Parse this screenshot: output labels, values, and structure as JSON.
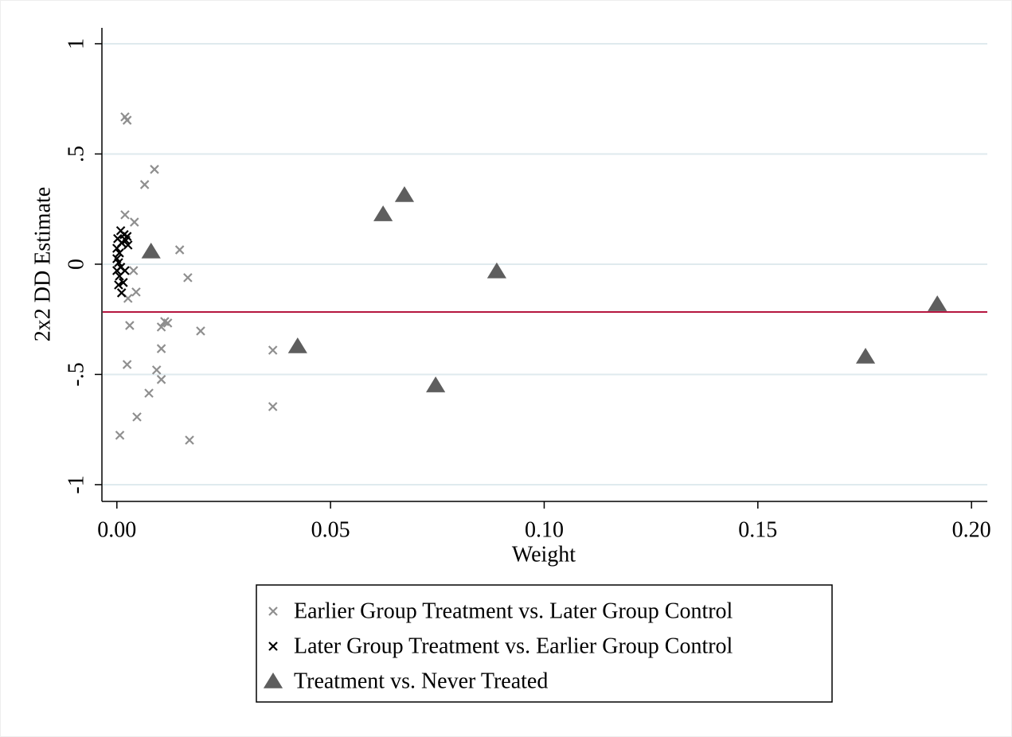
{
  "chart_data": {
    "type": "scatter",
    "x_label": "Weight",
    "y_label": "2x2 DD Estimate",
    "xlim": [
      -0.0035,
      0.2037
    ],
    "ylim": [
      -1.076,
      1.072
    ],
    "xticks": [
      {
        "value": 0,
        "label": "0.00"
      },
      {
        "value": 0.05,
        "label": "0.05"
      },
      {
        "value": 0.1,
        "label": "0.10"
      },
      {
        "value": 0.15,
        "label": "0.15"
      },
      {
        "value": 0.2,
        "label": "0.20"
      }
    ],
    "yticks": [
      -1,
      {
        "value": -0.5,
        "label": "-.5"
      },
      0,
      {
        "value": 0.5,
        "label": ".5"
      },
      1
    ],
    "grid": true,
    "grid_color": "#dfeaee",
    "reference_line": -0.217,
    "reference_line_color": "#b5163f",
    "legend": "bottom",
    "series": [
      {
        "name": "Earlier Group Treatment vs. Later Group Control",
        "color": "#8f8f8f",
        "marker": "x",
        "x": [
          0.0019,
          0.0024,
          0.0088,
          0.0065,
          0.0019,
          0.0041,
          0.0147,
          0.0166,
          0.0039,
          0.0045,
          0.0026,
          0.003,
          0.0112,
          0.0104,
          0.0119,
          0.0196,
          0.0104,
          0.0365,
          0.0024,
          0.0093,
          0.0104,
          0.0075,
          0.0365,
          0.0047,
          0.0007,
          0.017
        ],
        "values": [
          0.668,
          0.653,
          0.43,
          0.361,
          0.224,
          0.191,
          0.065,
          -0.061,
          -0.029,
          -0.126,
          -0.155,
          -0.278,
          -0.26,
          -0.285,
          -0.267,
          -0.303,
          -0.383,
          -0.39,
          -0.455,
          -0.48,
          -0.523,
          -0.585,
          -0.646,
          -0.693,
          -0.776,
          -0.798
        ]
      },
      {
        "name": "Later Group Treatment vs. Earlier Group Control",
        "color": "#000000",
        "marker": "x",
        "x": [
          0.0009,
          0.0017,
          0.0002,
          0.0021,
          0.0011,
          0.0,
          0.0006,
          0.0,
          0.0004,
          0.0009,
          0.0,
          0.0019,
          0.0006,
          0.0015,
          0.0004,
          0.0011,
          0.0024,
          0.0026
        ],
        "values": [
          0.152,
          0.134,
          0.116,
          0.108,
          0.097,
          0.072,
          0.051,
          0.025,
          0.007,
          -0.014,
          -0.029,
          -0.029,
          -0.054,
          -0.083,
          -0.094,
          -0.13,
          0.126,
          0.087
        ]
      },
      {
        "name": "Treatment vs. Never Treated",
        "color": "#5e5e5e",
        "marker": "triangle",
        "x": [
          0.008,
          0.0623,
          0.0673,
          0.0889,
          0.0423,
          0.0746,
          0.1752,
          0.192
        ],
        "values": [
          0.058,
          0.227,
          0.314,
          -0.032,
          -0.372,
          -0.549,
          -0.419,
          -0.181
        ]
      }
    ]
  }
}
